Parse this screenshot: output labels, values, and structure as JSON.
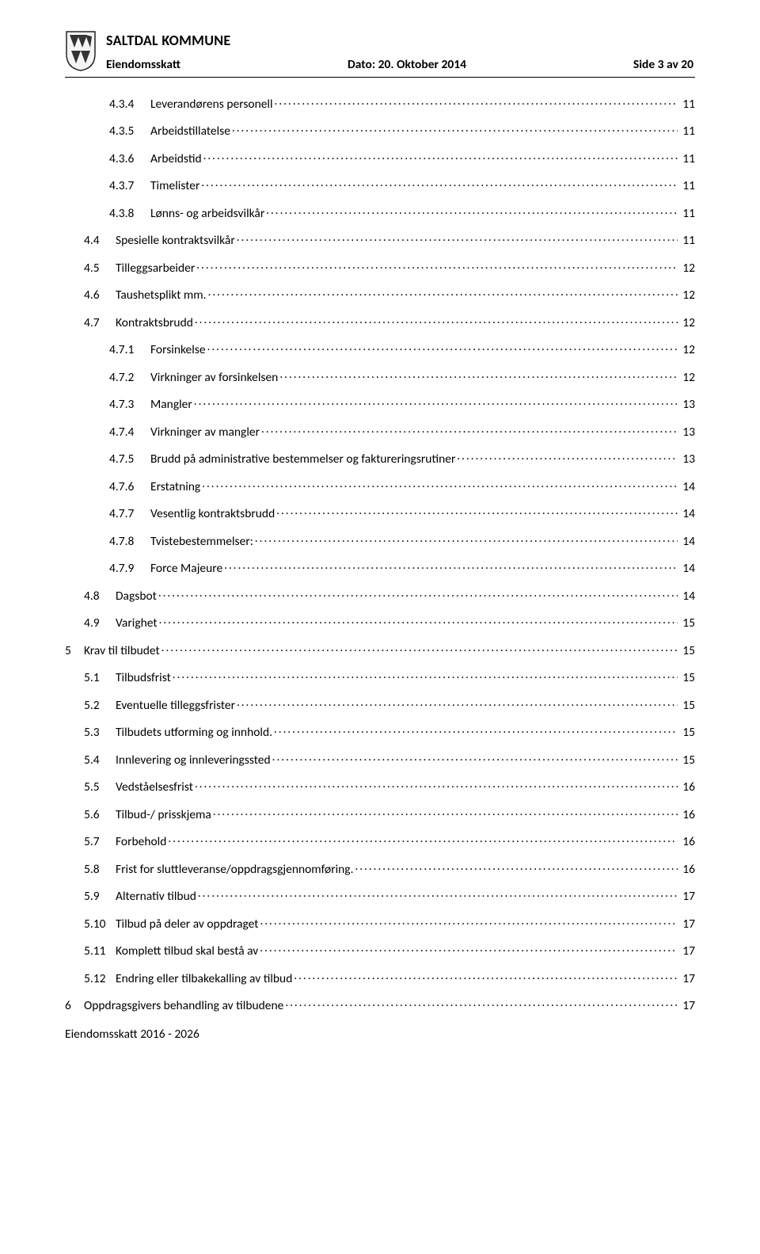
{
  "header": {
    "org": "SALTDAL KOMMUNE",
    "doc": "Eiendomsskatt",
    "date": "Dato: 20. Oktober 2014",
    "page": "Side 3 av 20"
  },
  "toc": [
    {
      "level": 2,
      "num": "4.3.4",
      "title": "Leverandørens personell",
      "page": "11"
    },
    {
      "level": 2,
      "num": "4.3.5",
      "title": "Arbeidstillatelse",
      "page": "11"
    },
    {
      "level": 2,
      "num": "4.3.6",
      "title": "Arbeidstid",
      "page": "11"
    },
    {
      "level": 2,
      "num": "4.3.7",
      "title": "Timelister",
      "page": "11"
    },
    {
      "level": 2,
      "num": "4.3.8",
      "title": "Lønns- og arbeidsvilkår",
      "page": "11"
    },
    {
      "level": 1,
      "num": "4.4",
      "title": "Spesielle kontraktsvilkår",
      "page": "11"
    },
    {
      "level": 1,
      "num": "4.5",
      "title": "Tilleggsarbeider",
      "page": "12"
    },
    {
      "level": 1,
      "num": "4.6",
      "title": "Taushetsplikt mm.",
      "page": "12"
    },
    {
      "level": 1,
      "num": "4.7",
      "title": "Kontraktsbrudd",
      "page": "12"
    },
    {
      "level": 2,
      "num": "4.7.1",
      "title": "Forsinkelse",
      "page": "12"
    },
    {
      "level": 2,
      "num": "4.7.2",
      "title": "Virkninger av forsinkelsen",
      "page": "12"
    },
    {
      "level": 2,
      "num": "4.7.3",
      "title": "Mangler",
      "page": "13"
    },
    {
      "level": 2,
      "num": "4.7.4",
      "title": "Virkninger av mangler",
      "page": "13"
    },
    {
      "level": 2,
      "num": "4.7.5",
      "title": "Brudd på administrative bestemmelser og faktureringsrutiner",
      "page": "13"
    },
    {
      "level": 2,
      "num": "4.7.6",
      "title": "Erstatning",
      "page": "14"
    },
    {
      "level": 2,
      "num": "4.7.7",
      "title": "Vesentlig kontraktsbrudd",
      "page": "14"
    },
    {
      "level": 2,
      "num": "4.7.8",
      "title": "Tvistebestemmelser:",
      "page": "14"
    },
    {
      "level": 2,
      "num": "4.7.9",
      "title": "Force Majeure",
      "page": "14"
    },
    {
      "level": 1,
      "num": "4.8",
      "title": "Dagsbot",
      "page": "14"
    },
    {
      "level": 1,
      "num": "4.9",
      "title": "Varighet",
      "page": "15"
    },
    {
      "level": 0,
      "num": "5",
      "title": "Krav til tilbudet",
      "page": "15"
    },
    {
      "level": 1,
      "num": "5.1",
      "title": "Tilbudsfrist",
      "page": "15"
    },
    {
      "level": 1,
      "num": "5.2",
      "title": "Eventuelle tilleggsfrister",
      "page": "15"
    },
    {
      "level": 1,
      "num": "5.3",
      "title": "Tilbudets utforming og innhold.",
      "page": "15"
    },
    {
      "level": 1,
      "num": "5.4",
      "title": "Innlevering og innleveringssted",
      "page": "15"
    },
    {
      "level": 1,
      "num": "5.5",
      "title": "Vedståelsesfrist",
      "page": "16"
    },
    {
      "level": 1,
      "num": "5.6",
      "title": "Tilbud-/ prisskjema",
      "page": "16"
    },
    {
      "level": 1,
      "num": "5.7",
      "title": "Forbehold",
      "page": "16"
    },
    {
      "level": 1,
      "num": "5.8",
      "title": "Frist for sluttleveranse/oppdragsgjennomføring.",
      "page": "16"
    },
    {
      "level": 1,
      "num": "5.9",
      "title": "Alternativ tilbud",
      "page": "17"
    },
    {
      "level": 1,
      "num": "5.10",
      "title": "Tilbud på deler av oppdraget",
      "page": "17"
    },
    {
      "level": 1,
      "num": "5.11",
      "title": "Komplett tilbud skal bestå av",
      "page": "17"
    },
    {
      "level": 1,
      "num": "5.12",
      "title": "Endring eller tilbakekalling av tilbud",
      "page": "17"
    },
    {
      "level": 0,
      "num": "6",
      "title": "Oppdragsgivers behandling av tilbudene",
      "page": "17"
    }
  ],
  "footer": "Eiendomsskatt 2016 - 2026"
}
